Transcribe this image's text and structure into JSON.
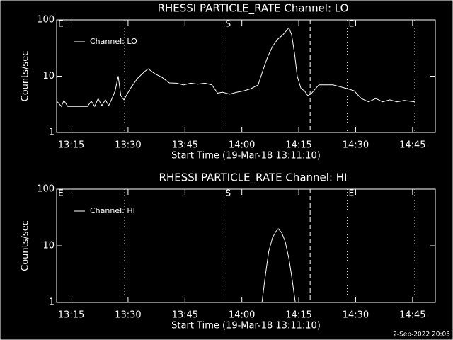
{
  "chart_data": [
    {
      "type": "line",
      "title": "RHESSI PARTICLE_RATE Channel: LO",
      "xlabel": "Start Time (19-Mar-18 13:11:10)",
      "ylabel": "Counts/sec",
      "x": [
        791.4,
        792.4,
        793.1,
        794.1,
        799.3,
        800.3,
        801.2,
        802.1,
        803.1,
        804.0,
        804.9,
        805.9,
        806.6,
        807.4,
        808.1,
        808.9,
        810.6,
        812.4,
        814.3,
        815.3,
        817.1,
        819.0,
        820.9,
        822.8,
        824.6,
        826.5,
        828.4,
        830.3,
        832.1,
        833.6,
        834.9,
        836.8,
        838.7,
        840.6,
        842.4,
        844.3,
        845.6,
        846.8,
        848.1,
        849.4,
        850.9,
        851.8,
        852.4,
        853.1,
        853.9,
        854.6,
        855.6,
        856.5,
        857.4,
        858.4,
        860.3,
        862.1,
        864.0,
        865.9,
        867.8,
        869.6,
        871.5,
        873.4,
        875.3,
        877.1,
        879.0,
        880.9,
        882.8,
        885.6
      ],
      "series": [
        {
          "name": "Channel: LO",
          "color": "#ffffff",
          "values": [
            3.5,
            2.9,
            3.7,
            2.9,
            2.9,
            3.6,
            2.9,
            4.0,
            3.0,
            3.8,
            3.0,
            4.2,
            5.5,
            10,
            4.5,
            3.8,
            6,
            9,
            12,
            13.5,
            11,
            9.5,
            7.6,
            7.5,
            7,
            7.5,
            7.2,
            7.5,
            7,
            5,
            5.2,
            4.8,
            5.2,
            5.5,
            6,
            7,
            13,
            22,
            34,
            45,
            55,
            65,
            72,
            55,
            25,
            10,
            6,
            5.5,
            4.5,
            5,
            7,
            7,
            7,
            6.5,
            6,
            5.5,
            4,
            3.5,
            4,
            3.5,
            3.8,
            3.5,
            3.7,
            3.5
          ]
        }
      ],
      "xlim": [
        791.17,
        891
      ],
      "ylim": [
        1,
        100
      ],
      "log_y": true,
      "xticks": [
        {
          "value": 795,
          "label": "13:15"
        },
        {
          "value": 810,
          "label": "13:30"
        },
        {
          "value": 825,
          "label": "13:45"
        },
        {
          "value": 840,
          "label": "14:00"
        },
        {
          "value": 855,
          "label": "14:15"
        },
        {
          "value": 870,
          "label": "14:30"
        },
        {
          "value": 885,
          "label": "14:45"
        }
      ],
      "yticks": [
        1,
        10,
        100
      ],
      "vlines": [
        {
          "x": 809.1,
          "style": "dotted"
        },
        {
          "x": 835.3,
          "style": "dashed"
        },
        {
          "x": 858.0,
          "style": "dashed"
        },
        {
          "x": 867.8,
          "style": "dotted"
        },
        {
          "x": 885.6,
          "style": "dotted"
        }
      ],
      "annotations": [
        {
          "text": "E",
          "x": 791.2
        },
        {
          "text": "S",
          "x": 835.3
        },
        {
          "text": "E",
          "x": 867.8
        }
      ],
      "legend": "upper left"
    },
    {
      "type": "line",
      "title": "RHESSI PARTICLE_RATE Channel: HI",
      "xlabel": "Start Time (19-Mar-18 13:11:10)",
      "ylabel": "Counts/sec",
      "x": [
        845.3,
        846.2,
        847.1,
        848.1,
        849.0,
        849.6,
        850.5,
        851.4,
        852.4,
        853.1,
        854.1
      ],
      "series": [
        {
          "name": "Channel: HI",
          "color": "#ffffff",
          "values": [
            1,
            3,
            8,
            14,
            18,
            20,
            17,
            12,
            6,
            3,
            1
          ]
        }
      ],
      "xlim": [
        791.17,
        891
      ],
      "ylim": [
        1,
        100
      ],
      "log_y": true,
      "xticks": [
        {
          "value": 795,
          "label": "13:15"
        },
        {
          "value": 810,
          "label": "13:30"
        },
        {
          "value": 825,
          "label": "13:45"
        },
        {
          "value": 840,
          "label": "14:00"
        },
        {
          "value": 855,
          "label": "14:15"
        },
        {
          "value": 870,
          "label": "14:30"
        },
        {
          "value": 885,
          "label": "14:45"
        }
      ],
      "yticks": [
        1,
        10,
        100
      ],
      "vlines": [
        {
          "x": 809.1,
          "style": "dotted"
        },
        {
          "x": 835.3,
          "style": "dashed"
        },
        {
          "x": 858.0,
          "style": "dashed"
        },
        {
          "x": 867.8,
          "style": "dotted"
        },
        {
          "x": 885.6,
          "style": "dotted"
        }
      ],
      "annotations": [
        {
          "text": "E",
          "x": 791.2
        },
        {
          "text": "S",
          "x": 835.3
        },
        {
          "text": "E",
          "x": 867.8
        }
      ],
      "legend": "upper left"
    }
  ],
  "footer": "2-Sep-2022 20:05"
}
